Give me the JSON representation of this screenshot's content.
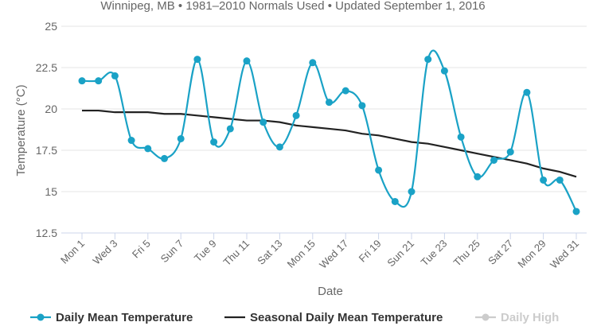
{
  "chart_data": {
    "type": "line",
    "subtitle": "Winnipeg, MB • 1981–2010 Normals Used • Updated September 1, 2016",
    "xlabel": "Date",
    "ylabel": "Temperature (°C)",
    "ylim": [
      12.5,
      25
    ],
    "yticks": [
      "12.5",
      "15",
      "17.5",
      "20",
      "22.5",
      "25"
    ],
    "x": [
      1,
      2,
      3,
      4,
      5,
      6,
      7,
      8,
      9,
      10,
      11,
      12,
      13,
      14,
      15,
      16,
      17,
      18,
      19,
      20,
      21,
      22,
      23,
      24,
      25,
      26,
      27,
      28,
      29,
      30,
      31
    ],
    "xtick_labels": [
      {
        "day": 1,
        "label": "Mon 1"
      },
      {
        "day": 3,
        "label": "Wed 3"
      },
      {
        "day": 5,
        "label": "Fri 5"
      },
      {
        "day": 7,
        "label": "Sun 7"
      },
      {
        "day": 9,
        "label": "Tue 9"
      },
      {
        "day": 11,
        "label": "Thu 11"
      },
      {
        "day": 13,
        "label": "Sat 13"
      },
      {
        "day": 15,
        "label": "Mon 15"
      },
      {
        "day": 17,
        "label": "Wed 17"
      },
      {
        "day": 19,
        "label": "Fri 19"
      },
      {
        "day": 21,
        "label": "Sun 21"
      },
      {
        "day": 23,
        "label": "Tue 23"
      },
      {
        "day": 25,
        "label": "Thu 25"
      },
      {
        "day": 27,
        "label": "Sat 27"
      },
      {
        "day": 29,
        "label": "Mon 29"
      },
      {
        "day": 31,
        "label": "Wed 31"
      }
    ],
    "series": [
      {
        "name": "Daily Mean Temperature",
        "color": "#1aa2c6",
        "markers": true,
        "values": [
          21.7,
          21.7,
          22.0,
          18.1,
          17.6,
          17.0,
          18.2,
          23.0,
          18.0,
          18.8,
          22.9,
          19.2,
          17.7,
          19.6,
          22.8,
          20.4,
          21.1,
          20.2,
          16.3,
          14.4,
          15.0,
          23.0,
          22.3,
          18.3,
          15.9,
          16.9,
          17.4,
          21.0,
          15.7,
          15.7,
          13.8
        ]
      },
      {
        "name": "Seasonal Daily Mean Temperature",
        "color": "#222222",
        "markers": false,
        "values": [
          19.9,
          19.9,
          19.8,
          19.8,
          19.8,
          19.7,
          19.7,
          19.6,
          19.5,
          19.4,
          19.3,
          19.3,
          19.2,
          19.0,
          18.9,
          18.8,
          18.7,
          18.5,
          18.4,
          18.2,
          18.0,
          17.9,
          17.7,
          17.5,
          17.3,
          17.1,
          16.9,
          16.7,
          16.4,
          16.2,
          15.9
        ]
      }
    ],
    "legend": {
      "position": "bottom",
      "items": [
        {
          "label": "Daily Mean Temperature",
          "color": "#1aa2c6",
          "marker": true,
          "active": true
        },
        {
          "label": "Seasonal Daily Mean Temperature",
          "color": "#222222",
          "marker": false,
          "active": true
        },
        {
          "label": "Daily High",
          "color": "#cccccc",
          "marker": true,
          "active": false
        }
      ]
    },
    "grid": "horizontal"
  }
}
